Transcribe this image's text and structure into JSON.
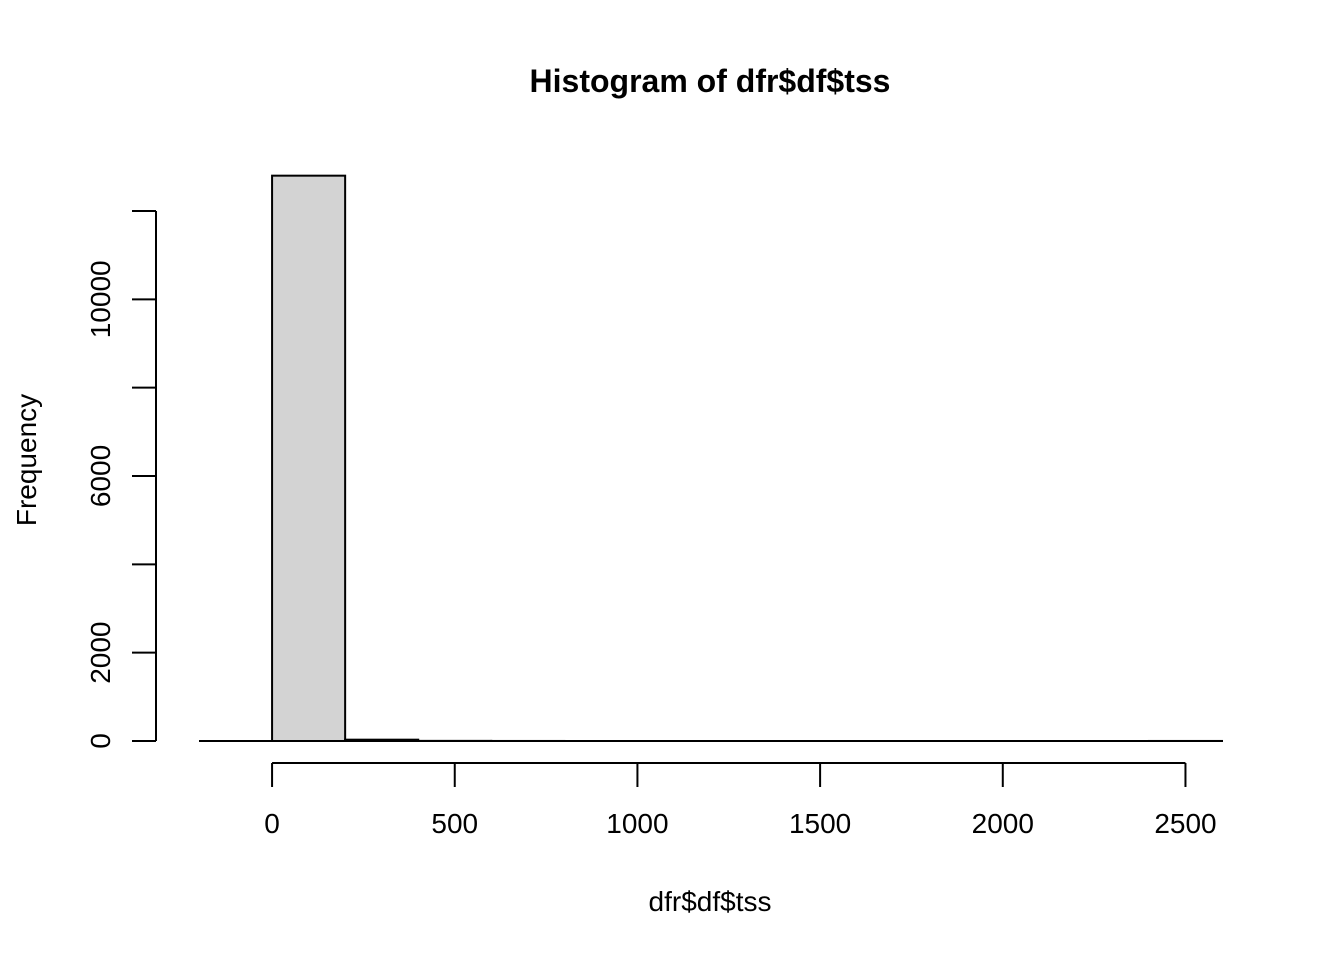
{
  "chart_data": {
    "type": "bar",
    "title": "Histogram of dfr$df$tss",
    "xlabel": "dfr$df$tss",
    "ylabel": "Frequency",
    "bins": [
      {
        "from": 0,
        "to": 200,
        "count": 12800
      },
      {
        "from": 200,
        "to": 400,
        "count": 30
      },
      {
        "from": 400,
        "to": 600,
        "count": 3
      },
      {
        "from": 600,
        "to": 800,
        "count": 1
      },
      {
        "from": 800,
        "to": 1000,
        "count": 0
      },
      {
        "from": 1000,
        "to": 1200,
        "count": 0
      },
      {
        "from": 1200,
        "to": 1400,
        "count": 0
      },
      {
        "from": 1400,
        "to": 1600,
        "count": 0
      },
      {
        "from": 1600,
        "to": 1800,
        "count": 0
      },
      {
        "from": 1800,
        "to": 2000,
        "count": 0
      },
      {
        "from": 2000,
        "to": 2200,
        "count": 0
      },
      {
        "from": 2200,
        "to": 2400,
        "count": 0
      },
      {
        "from": 2400,
        "to": 2600,
        "count": 1
      }
    ],
    "xlim": [
      -200,
      2600
    ],
    "ylim": [
      0,
      12000
    ],
    "x_ticks": [
      0,
      500,
      1000,
      1500,
      2000,
      2500
    ],
    "x_tick_labels": [
      "0",
      "500",
      "1000",
      "1500",
      "2000",
      "2500"
    ],
    "y_ticks": [
      0,
      2000,
      4000,
      6000,
      8000,
      10000,
      12000
    ],
    "y_tick_labels": [
      "0",
      "2000",
      "",
      "6000",
      "",
      "10000",
      ""
    ],
    "bar_fill": "#d3d3d3",
    "bar_stroke": "#000000",
    "grid": false,
    "legend": "none"
  }
}
